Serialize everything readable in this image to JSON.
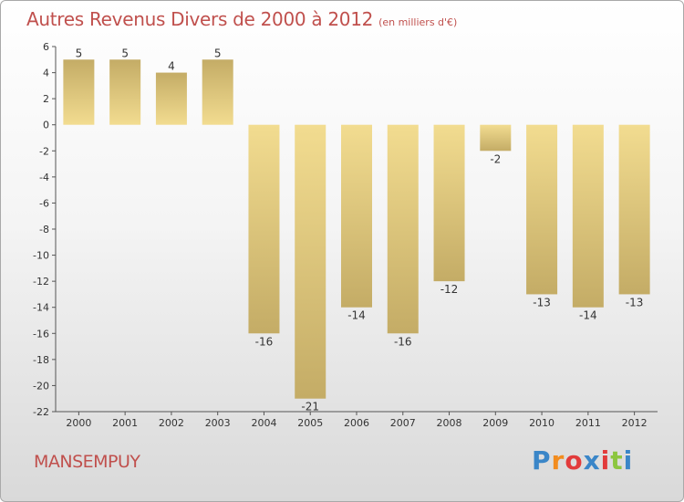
{
  "header": {
    "title": "Autres Revenus Divers de 2000 à 2012",
    "subtitle": "(en milliers d'€)"
  },
  "footer": {
    "place": "MANSEMPUY",
    "brand_letters": [
      "P",
      "r",
      "o",
      "x",
      "i",
      "t",
      "i"
    ],
    "brand_colors": [
      "#3a86c8",
      "#f28c1e",
      "#e23b3b",
      "#3a86c8",
      "#e23b3b",
      "#8cc63f",
      "#3a86c8"
    ]
  },
  "chart_data": {
    "type": "bar",
    "title": "Autres Revenus Divers de 2000 à 2012",
    "subtitle": "(en milliers d'€)",
    "xlabel": "",
    "ylabel": "",
    "categories": [
      "2000",
      "2001",
      "2002",
      "2003",
      "2004",
      "2005",
      "2006",
      "2007",
      "2008",
      "2009",
      "2010",
      "2011",
      "2012"
    ],
    "values": [
      5,
      5,
      4,
      5,
      -16,
      -21,
      -14,
      -16,
      -12,
      -2,
      -13,
      -14,
      -13
    ],
    "ylim": [
      -22,
      6
    ],
    "yticks": [
      6,
      4,
      2,
      0,
      -2,
      -4,
      -6,
      -8,
      -10,
      -12,
      -14,
      -16,
      -18,
      -20,
      -22
    ],
    "grid": false,
    "legend": "none",
    "bar_colors": {
      "light": "#f2dc90",
      "dark": "#c4ac66"
    }
  }
}
